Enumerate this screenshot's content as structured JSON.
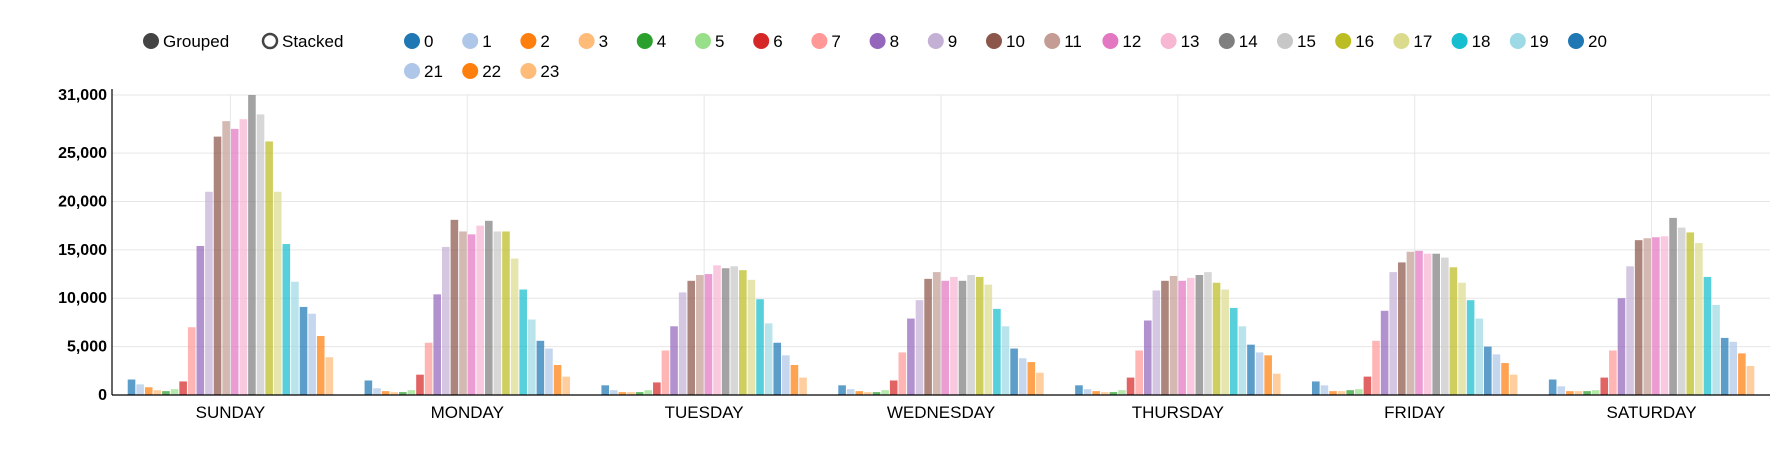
{
  "controls": {
    "grouped_label": "Grouped",
    "stacked_label": "Stacked",
    "selected": "grouped"
  },
  "chart_data": {
    "type": "bar",
    "mode": "grouped",
    "categories": [
      "SUNDAY",
      "MONDAY",
      "TUESDAY",
      "WEDNESDAY",
      "THURSDAY",
      "FRIDAY",
      "SATURDAY"
    ],
    "yticks": [
      0,
      5000,
      10000,
      15000,
      20000,
      25000,
      31000
    ],
    "ytick_labels": [
      "0",
      "5,000",
      "10,000",
      "15,000",
      "20,000",
      "25,000",
      "31,000"
    ],
    "ylim": [
      0,
      31000
    ],
    "grid": true,
    "legend_position": "top",
    "series": [
      {
        "name": "0",
        "color": "#1f77b4",
        "values": [
          1600,
          1500,
          1000,
          1000,
          1000,
          1400,
          1600
        ]
      },
      {
        "name": "1",
        "color": "#aec7e8",
        "values": [
          1100,
          700,
          500,
          600,
          600,
          1000,
          900
        ]
      },
      {
        "name": "2",
        "color": "#ff7f0e",
        "values": [
          800,
          400,
          300,
          400,
          400,
          400,
          400
        ]
      },
      {
        "name": "3",
        "color": "#ffbb78",
        "values": [
          500,
          300,
          300,
          300,
          300,
          400,
          400
        ]
      },
      {
        "name": "4",
        "color": "#2ca02c",
        "values": [
          400,
          300,
          300,
          300,
          300,
          500,
          400
        ]
      },
      {
        "name": "5",
        "color": "#98df8a",
        "values": [
          600,
          500,
          500,
          500,
          500,
          600,
          500
        ]
      },
      {
        "name": "6",
        "color": "#d62728",
        "values": [
          1400,
          2100,
          1300,
          1500,
          1800,
          1900,
          1800
        ]
      },
      {
        "name": "7",
        "color": "#ff9896",
        "values": [
          7000,
          5400,
          4600,
          4400,
          4600,
          5600,
          4600
        ]
      },
      {
        "name": "8",
        "color": "#9467bd",
        "values": [
          15400,
          10400,
          7100,
          7900,
          7700,
          8700,
          10000
        ]
      },
      {
        "name": "9",
        "color": "#c5b0d5",
        "values": [
          21000,
          15300,
          10600,
          9800,
          10800,
          12700,
          13300
        ]
      },
      {
        "name": "10",
        "color": "#8c564b",
        "values": [
          26700,
          18100,
          11800,
          12000,
          11800,
          13700,
          16000
        ]
      },
      {
        "name": "11",
        "color": "#c49c94",
        "values": [
          28300,
          16900,
          12400,
          12700,
          12300,
          14800,
          16200
        ]
      },
      {
        "name": "12",
        "color": "#e377c2",
        "values": [
          27500,
          16600,
          12500,
          11800,
          11800,
          14900,
          16300
        ]
      },
      {
        "name": "13",
        "color": "#f7b6d2",
        "values": [
          28500,
          17500,
          13400,
          12200,
          12100,
          14600,
          16400
        ]
      },
      {
        "name": "14",
        "color": "#7f7f7f",
        "values": [
          31000,
          18000,
          13100,
          11800,
          12400,
          14600,
          18300
        ]
      },
      {
        "name": "15",
        "color": "#c7c7c7",
        "values": [
          29000,
          16900,
          13300,
          12400,
          12700,
          14200,
          17300
        ]
      },
      {
        "name": "16",
        "color": "#bcbd22",
        "values": [
          26200,
          16900,
          12900,
          12200,
          11600,
          13200,
          16800
        ]
      },
      {
        "name": "17",
        "color": "#dbdb8d",
        "values": [
          21000,
          14100,
          11900,
          11400,
          10900,
          11600,
          15700
        ]
      },
      {
        "name": "18",
        "color": "#17becf",
        "values": [
          15600,
          10900,
          9900,
          8900,
          9000,
          9800,
          12200
        ]
      },
      {
        "name": "19",
        "color": "#9edae5",
        "values": [
          11700,
          7800,
          7400,
          7100,
          7100,
          7900,
          9300
        ]
      },
      {
        "name": "20",
        "color": "#1f77b4",
        "values": [
          9100,
          5600,
          5400,
          4800,
          5200,
          5000,
          5900
        ]
      },
      {
        "name": "21",
        "color": "#aec7e8",
        "values": [
          8400,
          4800,
          4100,
          3800,
          4400,
          4200,
          5500
        ]
      },
      {
        "name": "22",
        "color": "#ff7f0e",
        "values": [
          6100,
          3100,
          3100,
          3400,
          4100,
          3300,
          4300
        ]
      },
      {
        "name": "23",
        "color": "#ffbb78",
        "values": [
          3900,
          1900,
          1800,
          2300,
          2200,
          2100,
          3000
        ]
      }
    ]
  }
}
